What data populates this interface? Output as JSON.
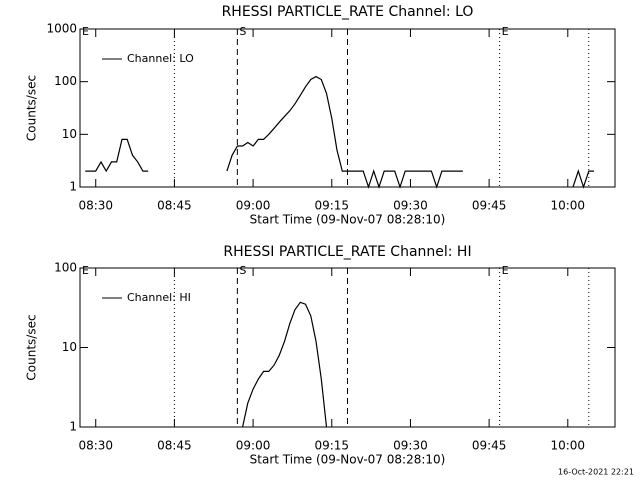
{
  "chart_data": [
    {
      "type": "line",
      "title": "RHESSI PARTICLE_RATE Channel: LO",
      "xlabel": "Start Time (09-Nov-07 08:28:10)",
      "ylabel": "Counts/sec",
      "x": [
        "08:28",
        "08:30",
        "08:31",
        "08:32",
        "08:33",
        "08:34",
        "08:35",
        "08:36",
        "08:37",
        "08:38",
        "08:39",
        "08:40",
        "08:41",
        "08:42",
        "08:43",
        "08:52",
        "08:53",
        "08:55",
        "08:56",
        "08:57",
        "08:58",
        "08:59",
        "09:00",
        "09:01",
        "09:02",
        "09:03",
        "09:04",
        "09:05",
        "09:06",
        "09:07",
        "09:08",
        "09:09",
        "09:10",
        "09:11",
        "09:12",
        "09:13",
        "09:14",
        "09:15",
        "09:16",
        "09:17",
        "09:18",
        "09:19",
        "09:20",
        "09:21",
        "09:22",
        "09:23",
        "09:24",
        "09:25",
        "09:26",
        "09:27",
        "09:28",
        "09:29",
        "09:30",
        "09:31",
        "09:32",
        "09:33",
        "09:34",
        "09:35",
        "09:36",
        "09:37",
        "09:38",
        "09:39",
        "09:40",
        "09:41",
        "09:55",
        "09:56",
        "10:01",
        "10:02",
        "10:03",
        "10:04",
        "10:05"
      ],
      "series": [
        {
          "name": "Channel: LO",
          "color": "#000000",
          "values": [
            2,
            2,
            3,
            2,
            3,
            3,
            8,
            8,
            4,
            3,
            2,
            2,
            null,
            1,
            null,
            1,
            null,
            2,
            4,
            6,
            6,
            7,
            6,
            8,
            8,
            10,
            13,
            17,
            22,
            28,
            38,
            55,
            80,
            110,
            125,
            110,
            60,
            20,
            5,
            2,
            2,
            2,
            2,
            2,
            1,
            2,
            1,
            2,
            2,
            2,
            1,
            2,
            2,
            2,
            2,
            2,
            2,
            1,
            2,
            2,
            2,
            2,
            2,
            null,
            1,
            null,
            1,
            2,
            1,
            2,
            2
          ]
        }
      ],
      "xlim": [
        "08:27",
        "10:09"
      ],
      "xticks": [
        "08:30",
        "08:45",
        "09:00",
        "09:15",
        "09:30",
        "09:45",
        "10:00"
      ],
      "ylim": [
        1,
        1000
      ],
      "yticks": [
        1,
        10,
        100,
        1000
      ],
      "log_y": true,
      "legend": "upper left",
      "vlines": [
        {
          "x": "08:45",
          "style": "dotted"
        },
        {
          "x": "08:57",
          "style": "dashed"
        },
        {
          "x": "09:18",
          "style": "dashed"
        },
        {
          "x": "09:47",
          "style": "dotted"
        },
        {
          "x": "10:04",
          "style": "dotted"
        }
      ],
      "flags": [
        {
          "x": "08:27",
          "label": "E"
        },
        {
          "x": "08:57",
          "label": "S"
        },
        {
          "x": "09:47",
          "label": "E"
        }
      ]
    },
    {
      "type": "line",
      "title": "RHESSI PARTICLE_RATE Channel: HI",
      "xlabel": "Start Time (09-Nov-07 08:28:10)",
      "ylabel": "Counts/sec",
      "x": [
        "08:58",
        "08:59",
        "09:00",
        "09:01",
        "09:02",
        "09:03",
        "09:04",
        "09:05",
        "09:06",
        "09:07",
        "09:08",
        "09:09",
        "09:10",
        "09:11",
        "09:12",
        "09:13",
        "09:14"
      ],
      "series": [
        {
          "name": "Channel: HI",
          "color": "#000000",
          "values": [
            1,
            2,
            3,
            4,
            5,
            5,
            6,
            8,
            12,
            20,
            30,
            37,
            35,
            25,
            12,
            4,
            1
          ]
        }
      ],
      "xlim": [
        "08:27",
        "10:09"
      ],
      "xticks": [
        "08:30",
        "08:45",
        "09:00",
        "09:15",
        "09:30",
        "09:45",
        "10:00"
      ],
      "ylim": [
        1,
        100
      ],
      "yticks": [
        1,
        10,
        100
      ],
      "log_y": true,
      "legend": "upper left",
      "vlines": [
        {
          "x": "08:45",
          "style": "dotted"
        },
        {
          "x": "08:57",
          "style": "dashed"
        },
        {
          "x": "09:18",
          "style": "dashed"
        },
        {
          "x": "09:47",
          "style": "dotted"
        },
        {
          "x": "10:04",
          "style": "dotted"
        }
      ],
      "flags": [
        {
          "x": "08:27",
          "label": "E"
        },
        {
          "x": "08:57",
          "label": "S"
        },
        {
          "x": "09:47",
          "label": "E"
        }
      ]
    }
  ],
  "footer": "16-Oct-2021 22:21"
}
